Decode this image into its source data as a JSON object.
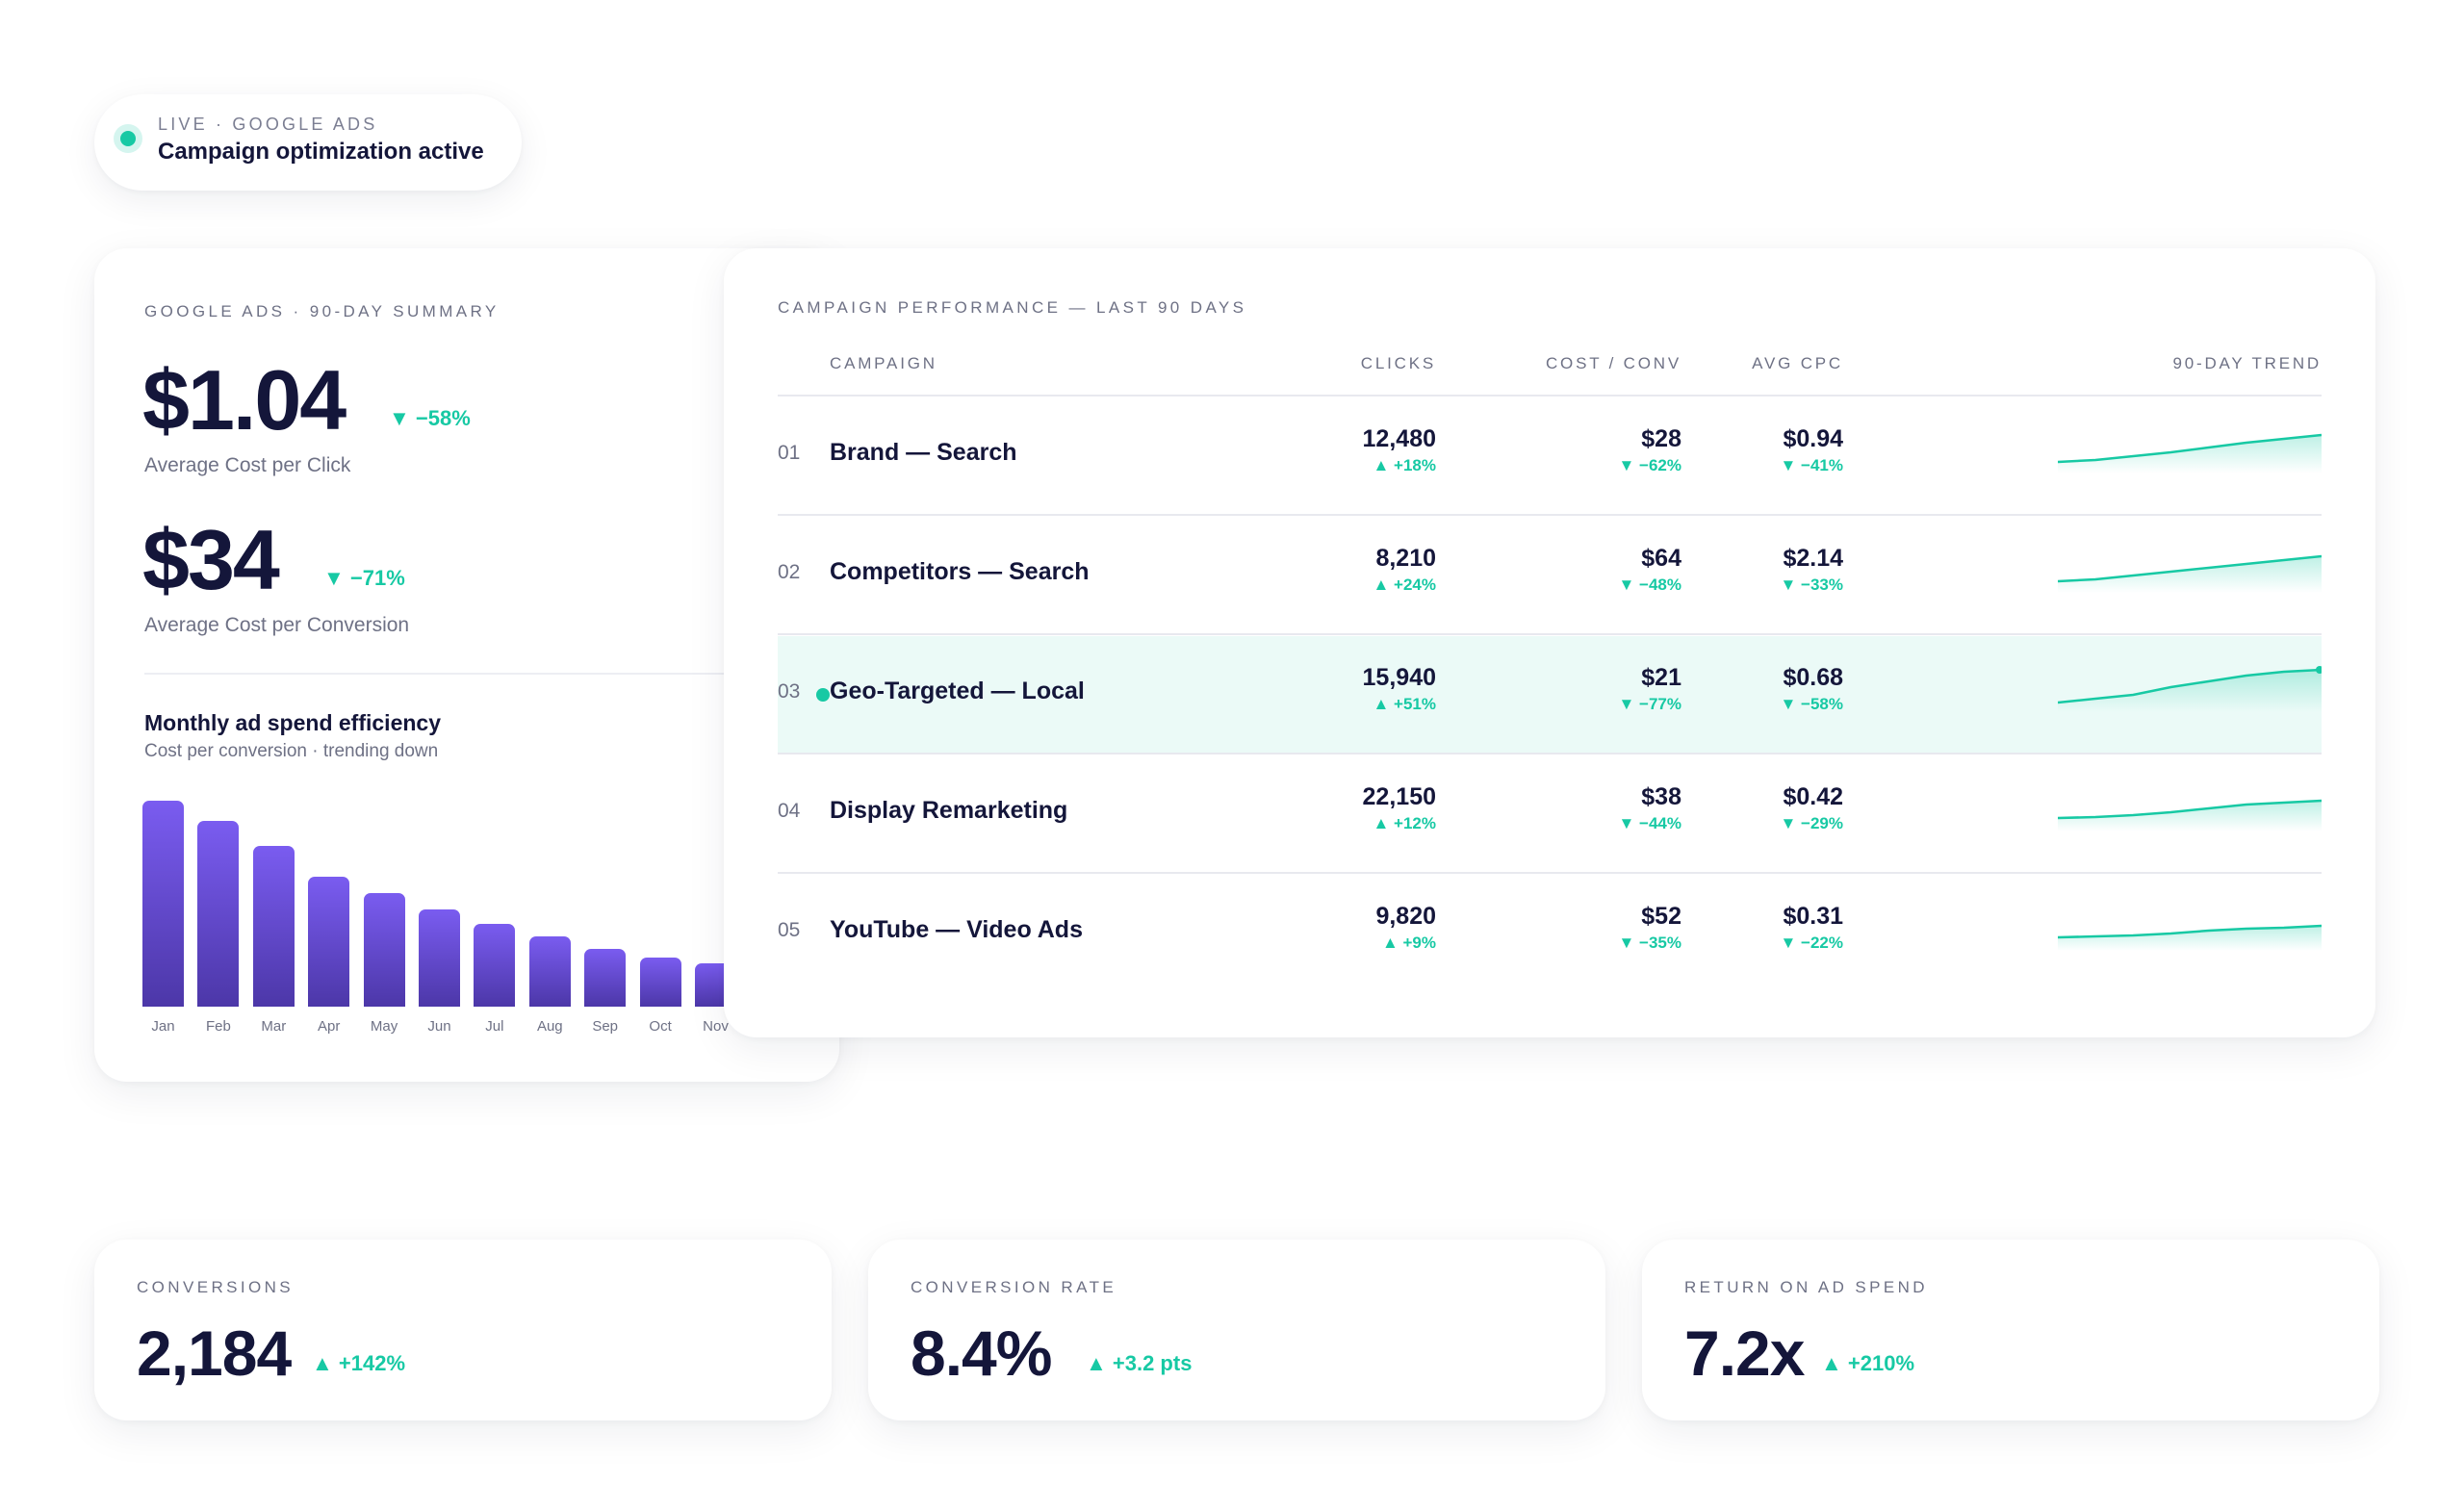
{
  "status": {
    "kicker": "LIVE · GOOGLE ADS",
    "title": "Campaign optimization active"
  },
  "summary": {
    "kicker": "GOOGLE ADS · 90-DAY SUMMARY",
    "cpc": {
      "value": "$1.04",
      "delta": "▼ −58%",
      "label": "Average Cost per Click"
    },
    "cpa": {
      "value": "$34",
      "delta": "▼ −71%",
      "label": "Average Cost per Conversion"
    },
    "chart_title": "Monthly ad spend efficiency",
    "chart_subtitle": "Cost per conversion · trending down"
  },
  "chart_data": {
    "type": "bar",
    "title": "Monthly ad spend efficiency",
    "subtitle": "Cost per conversion · trending down",
    "categories": [
      "Jan",
      "Feb",
      "Mar",
      "Apr",
      "May",
      "Jun",
      "Jul",
      "Aug",
      "Sep",
      "Oct",
      "Nov"
    ],
    "values": [
      100,
      90,
      78,
      63,
      55,
      47,
      40,
      34,
      28,
      24,
      21
    ],
    "ylim": [
      0,
      100
    ],
    "color": "#6a4fe0"
  },
  "performance": {
    "kicker": "CAMPAIGN PERFORMANCE — LAST 90 DAYS",
    "headers": {
      "campaign": "CAMPAIGN",
      "clicks": "CLICKS",
      "cost_conv": "COST / CONV",
      "avg_cpc": "AVG CPC",
      "trend": "90-DAY TREND"
    },
    "rows": [
      {
        "num": "01",
        "name": "Brand — Search",
        "clicks": "12,480",
        "clicks_delta": "▲ +18%",
        "cost": "$28",
        "cost_delta": "▼ −62%",
        "cpc": "$0.94",
        "cpc_delta": "▼ −41%",
        "trend": [
          10,
          12,
          16,
          20,
          25,
          30,
          34,
          38
        ],
        "highlighted": false
      },
      {
        "num": "02",
        "name": "Competitors — Search",
        "clicks": "8,210",
        "clicks_delta": "▲ +24%",
        "cost": "$64",
        "cost_delta": "▼ −48%",
        "cpc": "$2.14",
        "cpc_delta": "▼ −33%",
        "trend": [
          10,
          12,
          16,
          20,
          24,
          28,
          32,
          36
        ],
        "highlighted": false
      },
      {
        "num": "03",
        "name": "Geo-Targeted — Local",
        "clicks": "15,940",
        "clicks_delta": "▲ +51%",
        "cost": "$21",
        "cost_delta": "▼ −77%",
        "cpc": "$0.68",
        "cpc_delta": "▼ −58%",
        "trend": [
          8,
          12,
          16,
          24,
          30,
          36,
          40,
          42
        ],
        "highlighted": true
      },
      {
        "num": "04",
        "name": "Display Remarketing",
        "clicks": "22,150",
        "clicks_delta": "▲ +12%",
        "cost": "$38",
        "cost_delta": "▼ −44%",
        "cpc": "$0.42",
        "cpc_delta": "▼ −29%",
        "trend": [
          12,
          13,
          15,
          18,
          22,
          26,
          28,
          30
        ],
        "highlighted": false
      },
      {
        "num": "05",
        "name": "YouTube — Video Ads",
        "clicks": "9,820",
        "clicks_delta": "▲ +9%",
        "cost": "$52",
        "cost_delta": "▼ −35%",
        "cpc": "$0.31",
        "cpc_delta": "▼ −22%",
        "trend": [
          12,
          13,
          14,
          16,
          19,
          21,
          22,
          24
        ],
        "highlighted": false
      }
    ]
  },
  "kpis": [
    {
      "label": "CONVERSIONS",
      "value": "2,184",
      "delta": "▲ +142%"
    },
    {
      "label": "CONVERSION RATE",
      "value": "8.4%",
      "delta": "▲ +3.2 pts"
    },
    {
      "label": "RETURN ON AD SPEND",
      "value": "7.2x",
      "delta": "▲ +210%"
    }
  ],
  "colors": {
    "accent": "#17c9a4",
    "bar": "#6a4fe0",
    "text": "#14163a",
    "muted": "#6e7185",
    "highlight": "#ebfaf7"
  }
}
